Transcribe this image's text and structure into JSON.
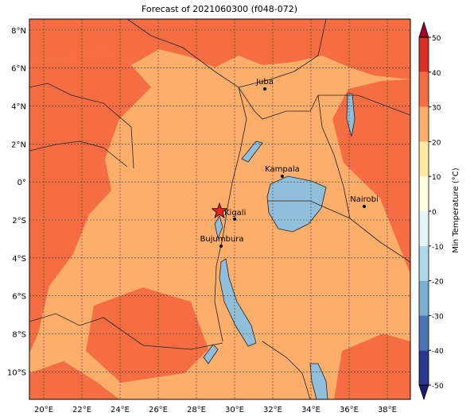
{
  "title": "Forecast of 2021060300 (f048-072)",
  "map": {
    "lonlim": [
      19.25,
      39.21
    ],
    "latlim": [
      -11.45,
      8.58
    ],
    "lon_ticks": [
      {
        "value": 20,
        "label": "20°E"
      },
      {
        "value": 22,
        "label": "22°E"
      },
      {
        "value": 24,
        "label": "24°E"
      },
      {
        "value": 26,
        "label": "26°E"
      },
      {
        "value": 28,
        "label": "28°E"
      },
      {
        "value": 30,
        "label": "30°E"
      },
      {
        "value": 32,
        "label": "32°E"
      },
      {
        "value": 34,
        "label": "34°E"
      },
      {
        "value": 36,
        "label": "36°E"
      },
      {
        "value": 38,
        "label": "38°E"
      }
    ],
    "lat_ticks": [
      {
        "value": 8,
        "label": "8°N"
      },
      {
        "value": 6,
        "label": "6°N"
      },
      {
        "value": 4,
        "label": "4°N"
      },
      {
        "value": 2,
        "label": "2°N"
      },
      {
        "value": 0,
        "label": "0°"
      },
      {
        "value": -2,
        "label": "2°S"
      },
      {
        "value": -4,
        "label": "4°S"
      },
      {
        "value": -6,
        "label": "6°S"
      },
      {
        "value": -8,
        "label": "8°S"
      },
      {
        "value": -10,
        "label": "10°S"
      }
    ],
    "grid": true,
    "cities": [
      "Juba",
      "Kampala",
      "Nairobi",
      "Kigali",
      "Bujumbura"
    ]
  },
  "colorbar": {
    "label": "Min Temperature (°C)",
    "lim": [
      -50,
      50
    ],
    "ticks": [
      -50,
      -40,
      -30,
      -20,
      -10,
      0,
      10,
      20,
      30,
      40,
      50
    ],
    "colors": [
      "#2c3590",
      "#4a74b4",
      "#7aaed3",
      "#b0d8e8",
      "#e6f4f7",
      "#fffee0",
      "#fee9a0",
      "#fdae6b",
      "#f46d43",
      "#d73027"
    ],
    "under": "#1b1b70",
    "over": "#a50026"
  }
}
